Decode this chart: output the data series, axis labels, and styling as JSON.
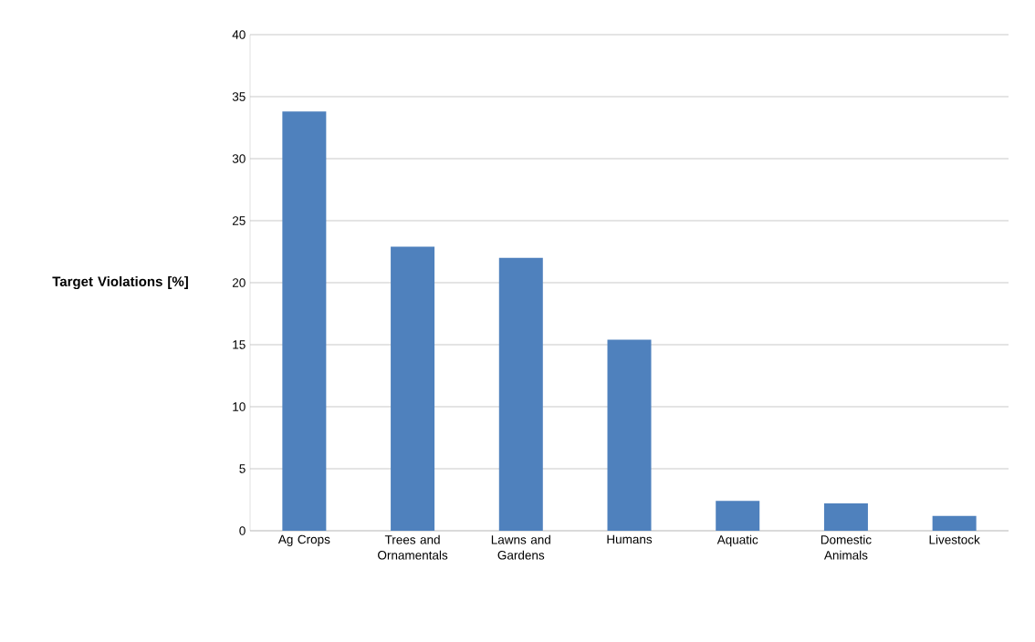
{
  "chart_data": {
    "type": "bar",
    "ylabel": "Target Violations [%]",
    "categories": [
      "Ag Crops",
      "Trees and Ornamentals",
      "Lawns and Gardens",
      "Humans",
      "Aquatic",
      "Domestic Animals",
      "Livestock"
    ],
    "values": [
      33.8,
      22.9,
      22.0,
      15.4,
      2.4,
      2.2,
      1.2
    ],
    "color": "#4f81bd",
    "ylim": [
      0,
      40
    ],
    "yticks": [
      0,
      5,
      10,
      15,
      20,
      25,
      30,
      35,
      40
    ],
    "grid": "y"
  }
}
